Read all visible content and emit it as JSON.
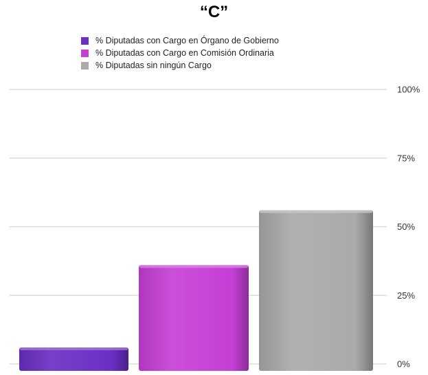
{
  "chart_data": {
    "type": "bar",
    "title": "“C”",
    "series": [
      {
        "name": "% Diputadas con Cargo en Órgano de Gobierno",
        "value": 6,
        "color": "#6a2fc4"
      },
      {
        "name": "% Diputadas con Cargo en Comisión Ordinaria",
        "value": 36,
        "color": "#c63fd6"
      },
      {
        "name": "% Diputadas sin ningún Cargo",
        "value": 56,
        "color": "#aaaaaa"
      }
    ],
    "yticks": [
      "0%",
      "25%",
      "50%",
      "75%",
      "100%"
    ],
    "ylim": [
      0,
      100
    ],
    "grid": true,
    "legend_position": "top"
  }
}
